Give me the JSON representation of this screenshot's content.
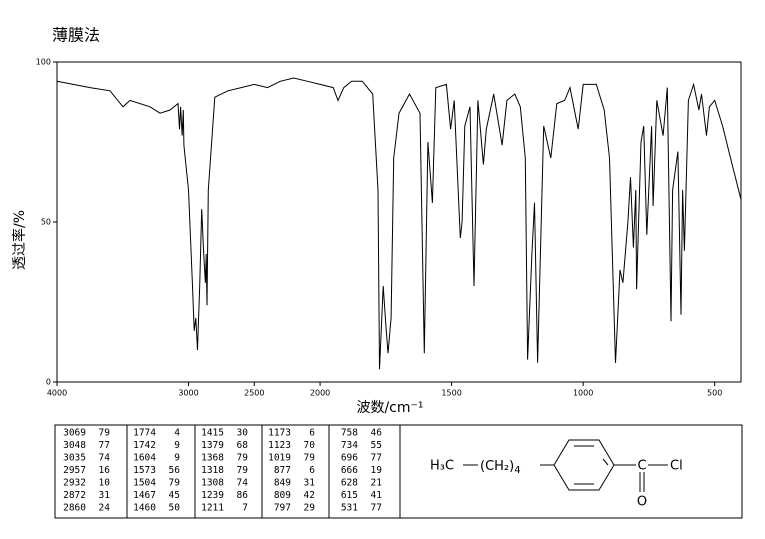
{
  "chart_data": {
    "type": "line",
    "title": "薄膜法",
    "x_label": "波数/cm⁻¹",
    "y_label": "透过率/%",
    "x": [
      4000,
      3749,
      3597,
      3498,
      3445,
      3293,
      3217,
      3141,
      3080,
      3069,
      3060,
      3048,
      3040,
      3035,
      3000,
      2970,
      2957,
      2945,
      2932,
      2915,
      2900,
      2885,
      2872,
      2866,
      2860,
      2850,
      2800,
      2700,
      2600,
      2500,
      2400,
      2300,
      2200,
      2100,
      2000,
      1950,
      1932,
      1910,
      1880,
      1840,
      1800,
      1780,
      1774,
      1760,
      1750,
      1742,
      1730,
      1720,
      1700,
      1660,
      1620,
      1604,
      1590,
      1573,
      1560,
      1520,
      1504,
      1490,
      1467,
      1460,
      1450,
      1430,
      1415,
      1400,
      1379,
      1368,
      1340,
      1318,
      1308,
      1290,
      1260,
      1239,
      1220,
      1211,
      1195,
      1185,
      1173,
      1150,
      1123,
      1100,
      1070,
      1050,
      1019,
      1000,
      950,
      920,
      900,
      877,
      860,
      849,
      830,
      820,
      809,
      800,
      797,
      780,
      770,
      758,
      740,
      734,
      720,
      696,
      680,
      666,
      660,
      640,
      628,
      622,
      615,
      600,
      580,
      560,
      550,
      531,
      520,
      500,
      470,
      440,
      400
    ],
    "values": [
      94,
      92,
      91,
      86,
      88,
      86,
      84,
      85,
      87,
      79,
      86,
      77,
      85,
      74,
      60,
      30,
      16,
      20,
      10,
      30,
      54,
      40,
      31,
      40,
      24,
      60,
      89,
      91,
      92,
      93,
      92,
      94,
      95,
      94,
      93,
      92,
      88,
      92,
      94,
      94,
      90,
      60,
      4,
      30,
      18,
      9,
      20,
      70,
      84,
      90,
      84,
      9,
      75,
      56,
      92,
      93,
      79,
      88,
      45,
      50,
      80,
      86,
      30,
      88,
      68,
      79,
      90,
      79,
      74,
      88,
      90,
      86,
      70,
      7,
      40,
      56,
      6,
      80,
      70,
      87,
      88,
      92,
      79,
      93,
      93,
      85,
      70,
      6,
      35,
      31,
      50,
      64,
      42,
      60,
      29,
      75,
      80,
      46,
      80,
      55,
      88,
      77,
      92,
      19,
      60,
      72,
      21,
      60,
      41,
      88,
      93,
      85,
      90,
      77,
      86,
      88,
      80,
      70,
      57
    ],
    "xlim": [
      4000,
      400
    ],
    "x_scale_break": 2000,
    "xticks": [
      4000,
      3000,
      2500,
      2000,
      1500,
      1000,
      500
    ],
    "ylim": [
      0,
      100
    ],
    "yticks": [
      0,
      50,
      100
    ],
    "color": "#000000"
  },
  "peak_table": {
    "columns": [
      [
        [
          3069,
          79
        ],
        [
          3048,
          77
        ],
        [
          3035,
          74
        ],
        [
          2957,
          16
        ],
        [
          2932,
          10
        ],
        [
          2872,
          31
        ],
        [
          2860,
          24
        ]
      ],
      [
        [
          1774,
          4
        ],
        [
          1742,
          9
        ],
        [
          1604,
          9
        ],
        [
          1573,
          56
        ],
        [
          1504,
          79
        ],
        [
          1467,
          45
        ],
        [
          1460,
          50
        ]
      ],
      [
        [
          1415,
          30
        ],
        [
          1379,
          68
        ],
        [
          1368,
          79
        ],
        [
          1318,
          79
        ],
        [
          1308,
          74
        ],
        [
          1239,
          86
        ],
        [
          1211,
          7
        ]
      ],
      [
        [
          1173,
          6
        ],
        [
          1123,
          70
        ],
        [
          1019,
          79
        ],
        [
          877,
          6
        ],
        [
          849,
          31
        ],
        [
          809,
          42
        ],
        [
          797,
          29
        ]
      ],
      [
        [
          758,
          46
        ],
        [
          734,
          55
        ],
        [
          696,
          77
        ],
        [
          666,
          19
        ],
        [
          628,
          21
        ],
        [
          615,
          41
        ],
        [
          531,
          77
        ]
      ]
    ]
  },
  "structure": {
    "methyl": "H₃C",
    "chain": "(CH₂)",
    "chain_count": "4",
    "carbon": "C",
    "chlorine": "Cl",
    "oxygen": "O"
  }
}
